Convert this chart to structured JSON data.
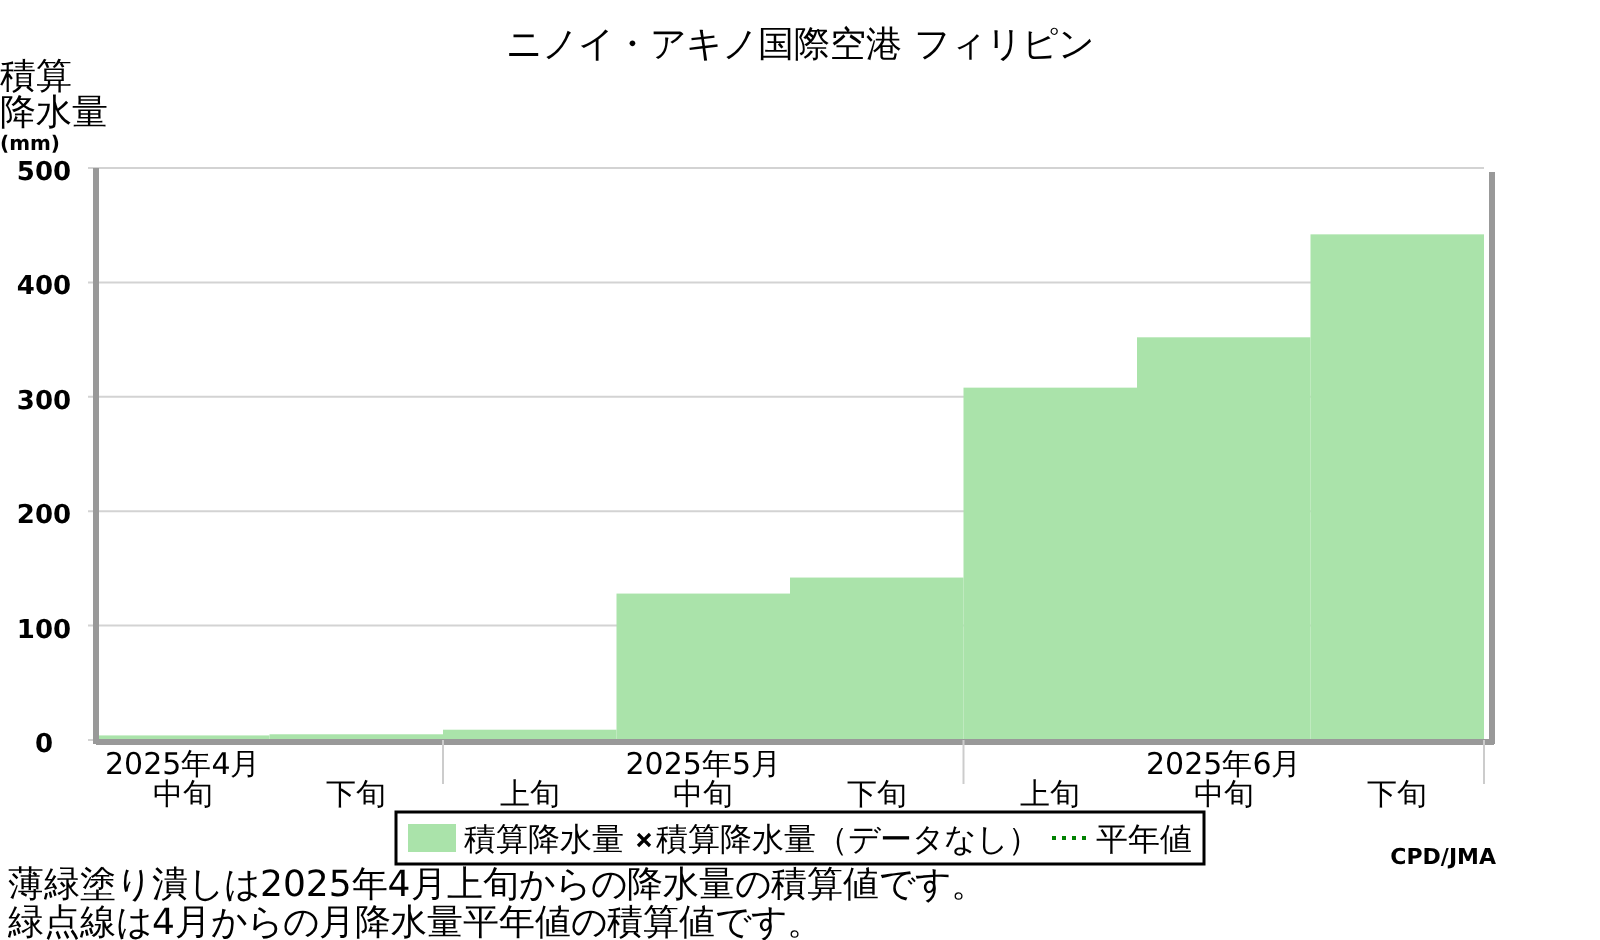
{
  "chart_data": {
    "type": "bar",
    "title": "ニノイ・アキノ国際空港 フィリピン",
    "ylabel": "積算降水量(mm)",
    "categories": [
      "中旬",
      "下旬",
      "上旬",
      "中旬",
      "下旬",
      "上旬",
      "中旬",
      "下旬"
    ],
    "series": [
      {
        "name": "積算降水量",
        "color": "#aae3aa",
        "values": [
          4,
          5,
          9,
          128,
          142,
          308,
          352,
          442
        ]
      },
      {
        "name": "積算降水量（データなし）",
        "type": "scatter",
        "marker": "cross",
        "color": "#000000",
        "values": [
          null,
          null,
          null,
          null,
          null,
          null,
          null,
          null
        ]
      },
      {
        "name": "平年値",
        "type": "line",
        "line_style": "dotted",
        "color": "#008000",
        "values": [
          null,
          null,
          null,
          null,
          null,
          null,
          null,
          null
        ]
      }
    ],
    "ylim": [
      0,
      500
    ],
    "yticks": [
      0,
      100,
      200,
      300,
      400,
      500
    ],
    "grid": "y",
    "legend": "bottom",
    "annotations": [
      "2025年4月",
      "2025年5月",
      "2025年6月",
      "CPD/JMA",
      "薄緑塗り潰しは2025年4月上旬からの降水量の積算値です。",
      "緑点線は4月からの月降水量平年値の積算値です。"
    ]
  }
}
